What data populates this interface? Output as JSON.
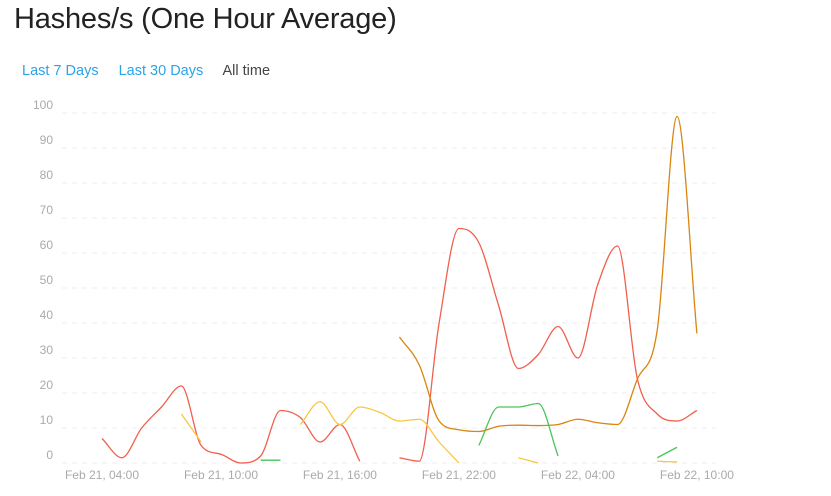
{
  "header": {
    "title": "Hashes/s (One Hour Average)"
  },
  "ranges": [
    {
      "label": "Last 7 Days",
      "active": false
    },
    {
      "label": "Last 30 Days",
      "active": false
    },
    {
      "label": "All time",
      "active": true
    }
  ],
  "colors": {
    "link": "#2aa4e8",
    "grid": "#eeeeee",
    "tick": "#aaaaaa"
  },
  "chart_data": {
    "type": "line",
    "title": "",
    "xlabel": "",
    "ylabel": "",
    "ylim": [
      0,
      100
    ],
    "grid": true,
    "y_ticks": [
      "0",
      "10",
      "20",
      "30",
      "40",
      "50",
      "60",
      "70",
      "80",
      "90",
      "100"
    ],
    "x_tick_labels": [
      "Feb 21, 04:00",
      "Feb 21, 10:00",
      "Feb 21, 16:00",
      "Feb 21, 22:00",
      "Feb 22, 04:00",
      "Feb 22, 10:00"
    ],
    "x": [
      "Feb 21, 04:00",
      "Feb 21, 05:00",
      "Feb 21, 06:00",
      "Feb 21, 07:00",
      "Feb 21, 08:00",
      "Feb 21, 09:00",
      "Feb 21, 10:00",
      "Feb 21, 11:00",
      "Feb 21, 12:00",
      "Feb 21, 13:00",
      "Feb 21, 14:00",
      "Feb 21, 15:00",
      "Feb 21, 16:00",
      "Feb 21, 17:00",
      "Feb 21, 18:00",
      "Feb 21, 19:00",
      "Feb 21, 20:00",
      "Feb 21, 21:00",
      "Feb 21, 22:00",
      "Feb 21, 23:00",
      "Feb 22, 00:00",
      "Feb 22, 01:00",
      "Feb 22, 02:00",
      "Feb 22, 03:00",
      "Feb 22, 04:00",
      "Feb 22, 05:00",
      "Feb 22, 06:00",
      "Feb 22, 07:00",
      "Feb 22, 08:00",
      "Feb 22, 09:00",
      "Feb 22, 10:00"
    ],
    "series": [
      {
        "color": "#f0604d",
        "values": [
          7,
          1.5,
          10,
          16,
          22,
          5,
          2.5,
          0,
          2,
          15,
          13,
          6,
          11,
          0.5,
          null,
          1.5,
          0.5,
          40,
          67,
          63,
          45,
          27,
          31,
          39,
          30,
          51,
          62,
          24,
          14,
          12,
          15
        ]
      },
      {
        "color": "#d9850f",
        "values": [
          null,
          null,
          null,
          null,
          null,
          null,
          null,
          null,
          null,
          null,
          null,
          null,
          null,
          null,
          null,
          36,
          28,
          12,
          9.5,
          9,
          10.5,
          10.8,
          10.7,
          11,
          12.5,
          11.5,
          11,
          24,
          38,
          99,
          37
        ]
      },
      {
        "color": "#f7c744",
        "values": [
          null,
          null,
          null,
          null,
          14,
          6,
          null,
          null,
          null,
          null,
          11,
          17.5,
          11,
          16,
          14.5,
          12,
          12.5,
          6,
          0,
          null,
          null,
          1.5,
          0,
          null,
          null,
          null,
          null,
          null,
          0.5,
          0.3,
          null
        ]
      },
      {
        "color": "#4cc35a",
        "values": [
          null,
          null,
          null,
          null,
          null,
          null,
          null,
          null,
          0.8,
          0.8,
          null,
          null,
          null,
          null,
          null,
          null,
          null,
          null,
          null,
          5,
          16,
          16,
          17,
          2,
          null,
          null,
          null,
          null,
          1.5,
          4.5,
          null
        ]
      }
    ]
  }
}
